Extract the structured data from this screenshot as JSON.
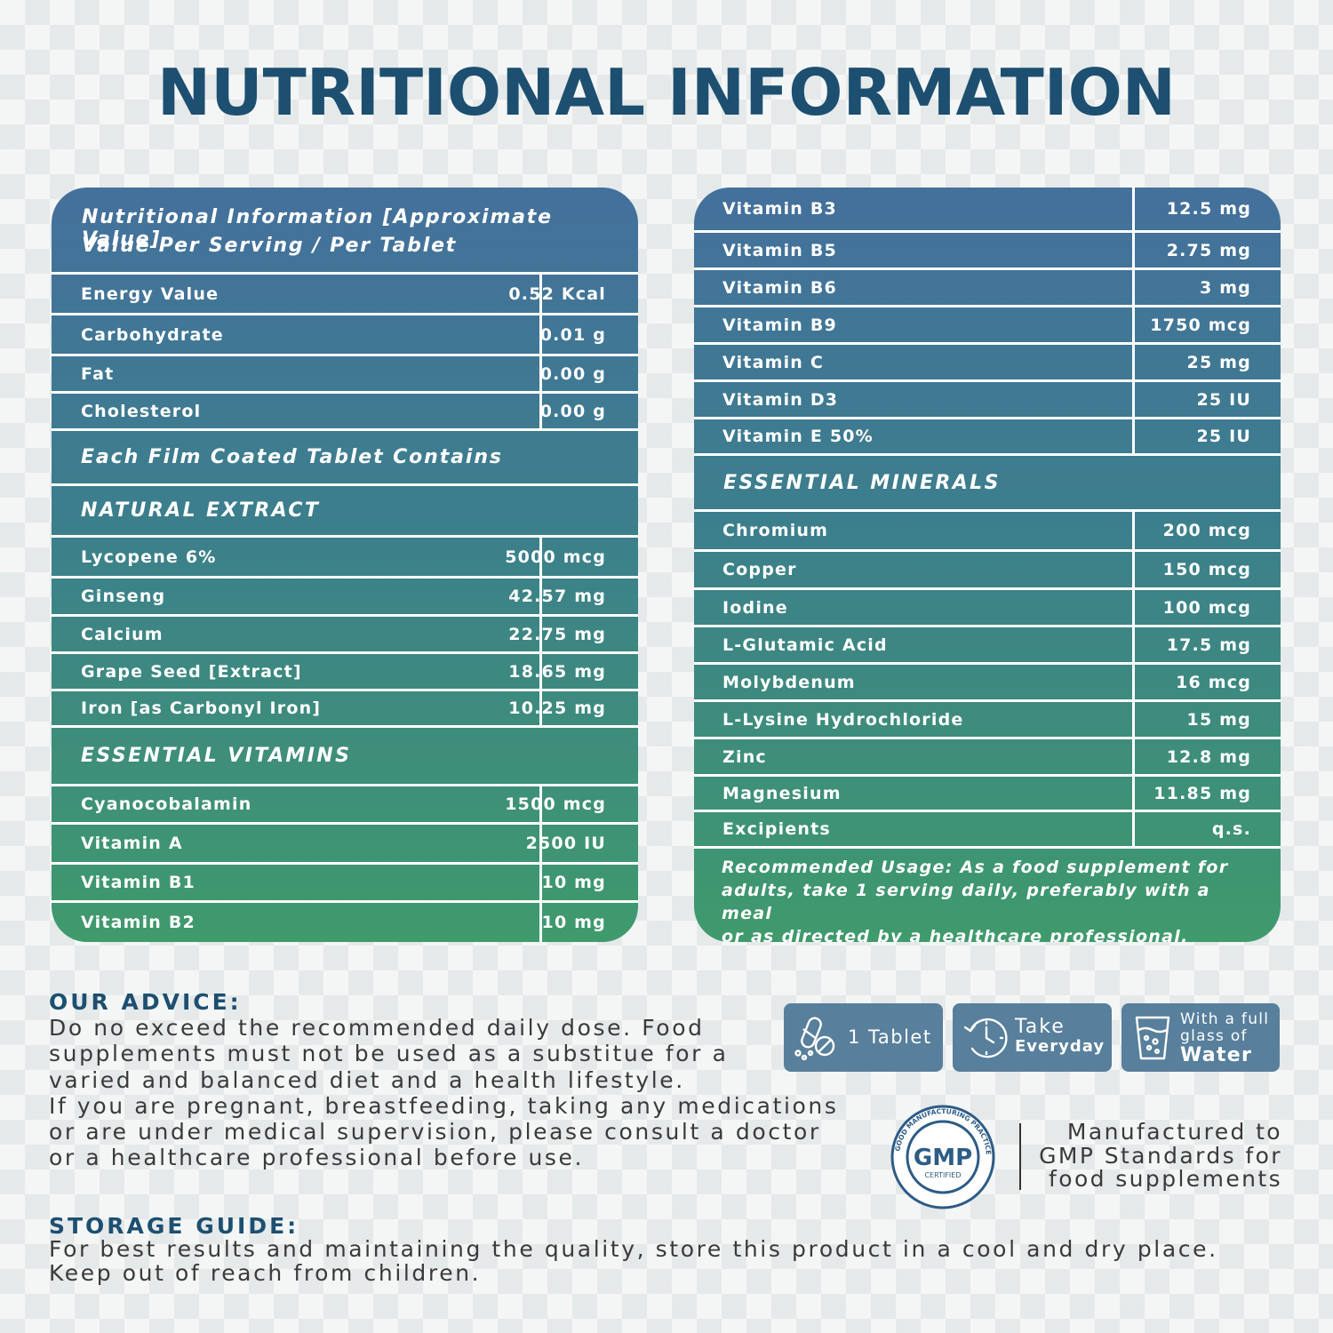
{
  "title": "NUTRITIONAL INFORMATION",
  "left_panel": {
    "header_line1": "Nutritional Information [Approximate Value]",
    "header_line2": "Value Per Serving / Per Tablet",
    "basic_rows": [
      {
        "name": "Energy Value",
        "value": "0.52 Kcal"
      },
      {
        "name": "Carbohydrate",
        "value": "0.01 g"
      },
      {
        "name": "Fat",
        "value": "0.00 g"
      },
      {
        "name": "Cholesterol",
        "value": "0.00 g"
      }
    ],
    "contains_heading": "Each Film Coated Tablet Contains",
    "natural_extract_heading": "NATURAL EXTRACT",
    "natural_extract_rows": [
      {
        "name": "Lycopene 6%",
        "value": "5000 mcg"
      },
      {
        "name": "Ginseng",
        "value": "42.57 mg"
      },
      {
        "name": "Calcium",
        "value": "22.75 mg"
      },
      {
        "name": "Grape Seed [Extract]",
        "value": "18.65 mg"
      },
      {
        "name": "Iron [as Carbonyl Iron]",
        "value": "10.25 mg"
      }
    ],
    "vitamins_heading": "ESSENTIAL VITAMINS",
    "vitamin_rows": [
      {
        "name": "Cyanocobalamin",
        "value": "1500 mcg"
      },
      {
        "name": "Vitamin A",
        "value": "2500 IU"
      },
      {
        "name": "Vitamin B1",
        "value": "10 mg"
      },
      {
        "name": "Vitamin B2",
        "value": "10 mg"
      }
    ]
  },
  "right_panel": {
    "vitamin_rows": [
      {
        "name": "Vitamin B3",
        "value": "12.5 mg"
      },
      {
        "name": "Vitamin B5",
        "value": "2.75 mg"
      },
      {
        "name": "Vitamin B6",
        "value": "3 mg"
      },
      {
        "name": "Vitamin B9",
        "value": "1750 mcg"
      },
      {
        "name": "Vitamin C",
        "value": "25 mg"
      },
      {
        "name": "Vitamin D3",
        "value": "25 IU"
      },
      {
        "name": "Vitamin E 50%",
        "value": "25 IU"
      }
    ],
    "minerals_heading": "ESSENTIAL MINERALS",
    "mineral_rows": [
      {
        "name": "Chromium",
        "value": "200 mcg"
      },
      {
        "name": "Copper",
        "value": "150 mcg"
      },
      {
        "name": "Iodine",
        "value": "100 mcg"
      },
      {
        "name": "L-Glutamic Acid",
        "value": "17.5 mg"
      },
      {
        "name": "Molybdenum",
        "value": "16 mcg"
      },
      {
        "name": "L-Lysine Hydrochloride",
        "value": "15 mg"
      },
      {
        "name": "Zinc",
        "value": "12.8 mg"
      },
      {
        "name": "Magnesium",
        "value": "11.85 mg"
      },
      {
        "name": "Excipients",
        "value": "q.s."
      }
    ],
    "usage_line1": "Recommended Usage: As a food supplement for",
    "usage_line2": "adults, take 1 serving daily, preferably with a meal",
    "usage_line3": "or as directed by a healthcare professional."
  },
  "advice": {
    "title": "OUR ADVICE:",
    "lines": [
      "Do no exceed the recommended daily dose. Food",
      "supplements must not be used as a substitue for a",
      "varied and balanced diet and a health lifestyle.",
      "If you are pregnant, breastfeeding, taking any medications",
      "or are under medical supervision, please consult a doctor",
      "or a healthcare professional before use."
    ]
  },
  "badges": {
    "tablet": {
      "icon": "pill-icon",
      "label": "1 Tablet"
    },
    "everyday": {
      "icon": "clock-icon",
      "line1": "Take",
      "line2": "Everyday"
    },
    "water": {
      "icon": "water-glass-icon",
      "line1": "With a full",
      "line2": "glass of",
      "line3": "Water"
    }
  },
  "gmp": {
    "icon": "gmp-seal-icon",
    "seal_big": "GMP",
    "seal_small": "CERTIFIED",
    "seal_ring": "GOOD MANUFACTURING PRACTICE",
    "lines": [
      "Manufactured to",
      "GMP Standards for",
      "food supplements"
    ]
  },
  "storage": {
    "title": "STORAGE GUIDE:",
    "lines": [
      "For best results and maintaining the quality, store this product in a cool and dry place.",
      "Keep out of reach from children."
    ]
  },
  "colors": {
    "title": "#1d4f70",
    "panel_top": "#44709c",
    "panel_mid": "#3c7f8c",
    "panel_bottom": "#3f9a6c",
    "badge": "#587f9c"
  }
}
